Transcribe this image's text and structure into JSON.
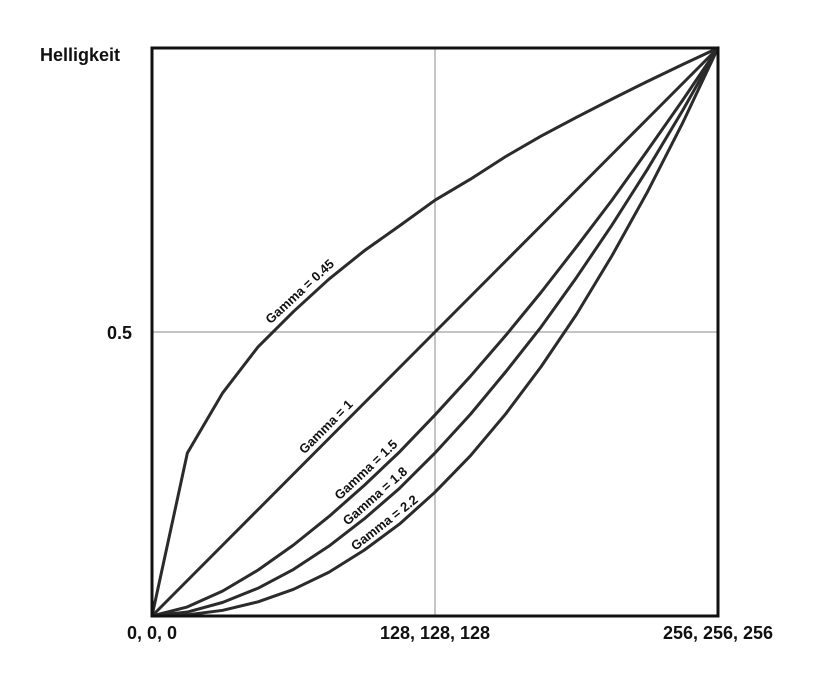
{
  "chart_data": {
    "type": "line",
    "title": "",
    "xlabel": "",
    "ylabel": "Helligkeit",
    "x_tick_labels": [
      "0, 0, 0",
      "128, 128, 128",
      "256, 256, 256"
    ],
    "x_ticks": [
      0,
      128,
      256
    ],
    "y_tick_labels": [
      "0.5"
    ],
    "y_ticks": [
      0.5
    ],
    "xlim": [
      0,
      256
    ],
    "ylim": [
      0,
      1
    ],
    "grid": false,
    "reference_lines": {
      "x": [
        128
      ],
      "y": [
        0.5
      ]
    },
    "x": [
      0,
      16,
      32,
      48,
      64,
      80,
      96,
      112,
      128,
      144,
      160,
      176,
      192,
      208,
      224,
      240,
      256
    ],
    "series": [
      {
        "name": "",
        "label": "Gamma = 0.45",
        "gamma": 0.45,
        "values": [
          0,
          0.287,
          0.393,
          0.474,
          0.536,
          0.593,
          0.643,
          0.687,
          0.732,
          0.769,
          0.809,
          0.845,
          0.878,
          0.91,
          0.941,
          0.971,
          1
        ]
      },
      {
        "name": "",
        "label": "Gamma = 1",
        "gamma": 1,
        "values": [
          0,
          0.0625,
          0.125,
          0.1875,
          0.25,
          0.3125,
          0.375,
          0.4375,
          0.5,
          0.5625,
          0.625,
          0.6875,
          0.75,
          0.8125,
          0.875,
          0.9375,
          1
        ]
      },
      {
        "name": "",
        "label": "Gamma = 1.5",
        "gamma": 1.5,
        "values": [
          0,
          0.016,
          0.044,
          0.081,
          0.125,
          0.175,
          0.23,
          0.289,
          0.354,
          0.422,
          0.494,
          0.57,
          0.65,
          0.732,
          0.819,
          0.908,
          1
        ]
      },
      {
        "name": "",
        "label": "Gamma = 1.8",
        "gamma": 1.8,
        "values": [
          0,
          0.007,
          0.024,
          0.049,
          0.082,
          0.123,
          0.171,
          0.225,
          0.287,
          0.355,
          0.43,
          0.509,
          0.596,
          0.688,
          0.786,
          0.89,
          1
        ]
      },
      {
        "name": "",
        "label": "Gamma = 2.2",
        "gamma": 2.2,
        "values": [
          0,
          0.002,
          0.01,
          0.025,
          0.047,
          0.077,
          0.116,
          0.162,
          0.218,
          0.282,
          0.356,
          0.439,
          0.531,
          0.634,
          0.746,
          0.868,
          1
        ]
      }
    ],
    "line_color": "#2b2b2b",
    "reference_line_color": "#888888"
  }
}
